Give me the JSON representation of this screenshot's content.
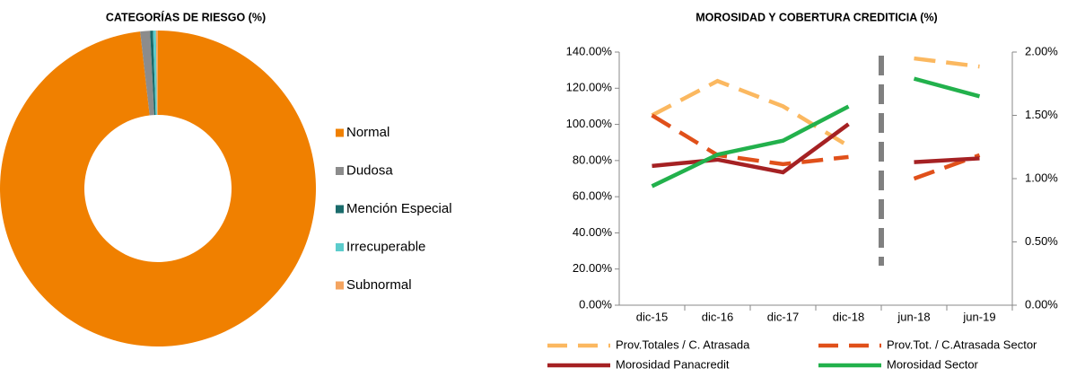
{
  "chart_data": [
    {
      "type": "pie",
      "title": "CATEGORÍAS DE RIESGO (%)",
      "donut": true,
      "categories": [
        "Normal",
        "Dudosa",
        "Mención Especial",
        "Irrecuperable",
        "Subnormal"
      ],
      "values": [
        98.2,
        1.0,
        0.3,
        0.3,
        0.2
      ],
      "colors": [
        "#f08000",
        "#8c8c8c",
        "#1a6b6b",
        "#5ccccc",
        "#f4a460"
      ]
    },
    {
      "type": "line",
      "title": "MOROSIDAD Y COBERTURA CREDITICIA (%)",
      "categories": [
        "dic-15",
        "dic-16",
        "dic-17",
        "dic-18",
        "jun-18",
        "jun-19"
      ],
      "separator_after": "dic-18",
      "separator_color": "#808080",
      "ylim": [
        0,
        140
      ],
      "yticks": [
        {
          "value": 0,
          "label": "0.00%"
        },
        {
          "value": 20,
          "label": "20.00%"
        },
        {
          "value": 40,
          "label": "40.00%"
        },
        {
          "value": 60,
          "label": "60.00%"
        },
        {
          "value": 80,
          "label": "80.00%"
        },
        {
          "value": 100,
          "label": "100.00%"
        },
        {
          "value": 120,
          "label": "120.00%"
        },
        {
          "value": 140,
          "label": "140.00%"
        }
      ],
      "y2lim": [
        0,
        2
      ],
      "y2ticks": [
        {
          "value": 0,
          "label": "0.00%"
        },
        {
          "value": 0.5,
          "label": "0.50%"
        },
        {
          "value": 1,
          "label": "1.00%"
        },
        {
          "value": 1.5,
          "label": "1.50%"
        },
        {
          "value": 2,
          "label": "2.00%"
        }
      ],
      "series": [
        {
          "name": "Prov.Totales / C. Atrasada",
          "color": "#fbb860",
          "dashed": true,
          "values": [
            105,
            124,
            110,
            88,
            136.5,
            132
          ]
        },
        {
          "name": "Prov.Tot. / C.Atrasada Sector",
          "color": "#e0501a",
          "dashed": true,
          "values": [
            105,
            83,
            78,
            82,
            70,
            83
          ]
        },
        {
          "name": "Morosidad Panacredit",
          "color": "#a52123",
          "axis": "y2",
          "values": [
            1.1,
            1.15,
            1.05,
            1.43,
            1.13,
            1.16
          ]
        },
        {
          "name": "Morosidad Sector",
          "color": "#22b14c",
          "axis": "y2",
          "values": [
            0.94,
            1.19,
            1.3,
            1.57,
            1.79,
            1.65
          ]
        }
      ]
    }
  ]
}
